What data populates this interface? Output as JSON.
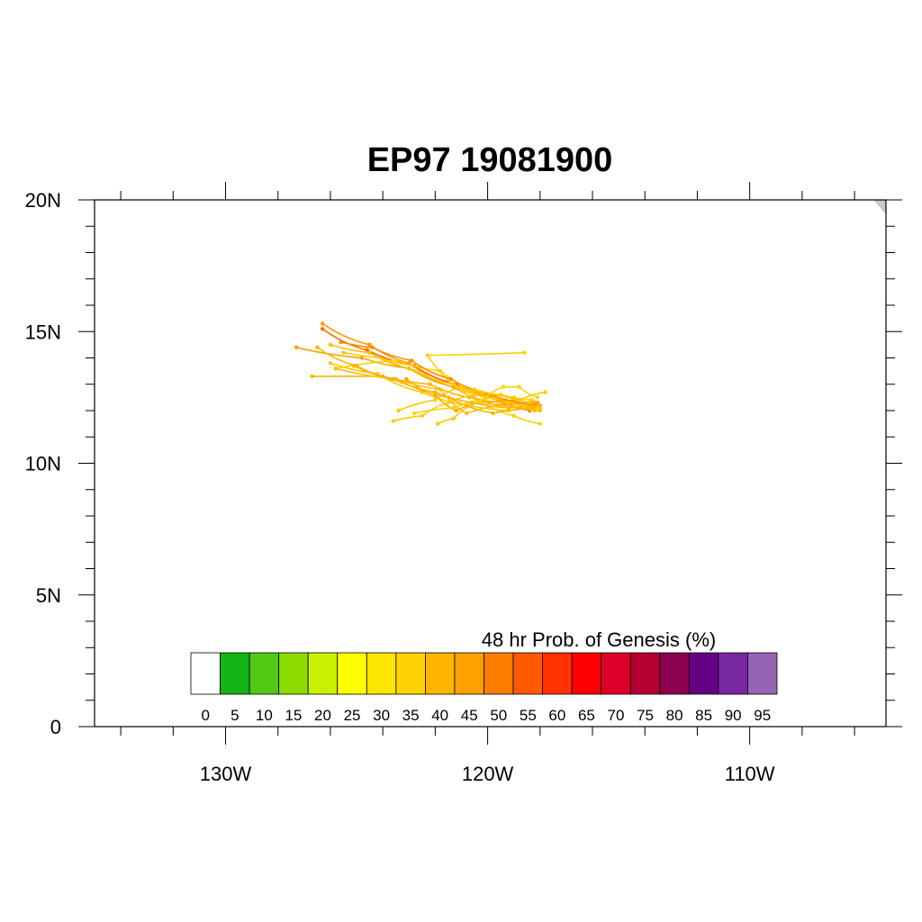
{
  "title": "EP97 19081900",
  "map": {
    "lon_range": [
      -135,
      -104.8
    ],
    "lat_range": [
      0,
      20
    ],
    "lat_labels": [
      {
        "lat": 20,
        "text": "20N"
      },
      {
        "lat": 15,
        "text": "15N"
      },
      {
        "lat": 10,
        "text": "10N"
      },
      {
        "lat": 5,
        "text": "5N"
      },
      {
        "lat": 0,
        "text": "0"
      }
    ],
    "lon_labels": [
      {
        "lon": -130,
        "text": "130W"
      },
      {
        "lon": -120,
        "text": "120W"
      },
      {
        "lon": -110,
        "text": "110W"
      }
    ]
  },
  "colorbar": {
    "title": "48 hr Prob. of Genesis (%)",
    "labels": [
      "0",
      "5",
      "10",
      "15",
      "20",
      "25",
      "30",
      "35",
      "40",
      "45",
      "50",
      "55",
      "60",
      "65",
      "70",
      "75",
      "80",
      "85",
      "90",
      "95"
    ],
    "colors": [
      "#ffffff",
      "#14b414",
      "#50c814",
      "#8cdc00",
      "#c8f000",
      "#ffff00",
      "#ffe600",
      "#ffd200",
      "#ffb400",
      "#ffa000",
      "#ff7d00",
      "#ff5a00",
      "#ff3200",
      "#ff0000",
      "#dc0028",
      "#b40032",
      "#8c0050",
      "#640082",
      "#7828a0",
      "#9664b4"
    ]
  },
  "tracks": [
    {
      "color": "#ffc800",
      "points": [
        [
          -118.2,
          12.1
        ],
        [
          -119.5,
          12.4
        ],
        [
          -121.0,
          12.8
        ],
        [
          -122.6,
          13.5
        ],
        [
          -124.0,
          14.0
        ],
        [
          -125.5,
          14.2
        ]
      ]
    },
    {
      "color": "#ff9600",
      "points": [
        [
          -118.3,
          12.2
        ],
        [
          -120.0,
          12.6
        ],
        [
          -121.5,
          13.1
        ],
        [
          -123.0,
          13.8
        ],
        [
          -124.5,
          14.5
        ],
        [
          -126.3,
          15.3
        ]
      ]
    },
    {
      "color": "#ff6e00",
      "points": [
        [
          -118.4,
          12.0
        ],
        [
          -119.8,
          12.5
        ],
        [
          -121.2,
          13.0
        ],
        [
          -122.8,
          13.7
        ],
        [
          -124.6,
          14.3
        ],
        [
          -126.3,
          15.1
        ]
      ]
    },
    {
      "color": "#ffa000",
      "points": [
        [
          -118.1,
          12.3
        ],
        [
          -119.6,
          12.2
        ],
        [
          -121.3,
          12.9
        ],
        [
          -123.0,
          13.6
        ],
        [
          -124.8,
          14.0
        ],
        [
          -127.3,
          14.4
        ]
      ]
    },
    {
      "color": "#ffb400",
      "points": [
        [
          -118.2,
          12.0
        ],
        [
          -119.4,
          12.3
        ],
        [
          -120.7,
          12.5
        ],
        [
          -122.2,
          13.0
        ],
        [
          -124.0,
          13.3
        ],
        [
          -126.7,
          13.3
        ]
      ]
    },
    {
      "color": "#ffc800",
      "points": [
        [
          -118.0,
          12.1
        ],
        [
          -119.2,
          12.0
        ],
        [
          -120.8,
          12.2
        ],
        [
          -122.5,
          12.7
        ],
        [
          -124.2,
          13.4
        ],
        [
          -126.0,
          13.8
        ]
      ]
    },
    {
      "color": "#ffd200",
      "points": [
        [
          -118.3,
          12.4
        ],
        [
          -119.5,
          12.6
        ],
        [
          -120.5,
          12.8
        ],
        [
          -121.8,
          13.5
        ],
        [
          -123.5,
          13.9
        ],
        [
          -125.8,
          13.6
        ]
      ]
    },
    {
      "color": "#ffbe00",
      "points": [
        [
          -118.1,
          12.2
        ],
        [
          -119.7,
          12.5
        ],
        [
          -121.3,
          13.0
        ],
        [
          -123.0,
          13.6
        ],
        [
          -124.5,
          14.2
        ],
        [
          -126.0,
          14.5
        ]
      ]
    },
    {
      "color": "#ffc800",
      "points": [
        [
          -118.0,
          12.0
        ],
        [
          -119.3,
          12.4
        ],
        [
          -120.5,
          12.6
        ],
        [
          -121.5,
          12.3
        ],
        [
          -122.5,
          11.8
        ],
        [
          -123.6,
          11.6
        ]
      ]
    },
    {
      "color": "#ffaa00",
      "points": [
        [
          -118.2,
          12.3
        ],
        [
          -119.0,
          12.4
        ],
        [
          -120.3,
          12.3
        ],
        [
          -121.2,
          12.0
        ],
        [
          -122.0,
          12.6
        ],
        [
          -123.1,
          13.2
        ]
      ]
    },
    {
      "color": "#ffd200",
      "points": [
        [
          -118.0,
          11.5
        ],
        [
          -119.0,
          11.8
        ],
        [
          -120.0,
          12.2
        ],
        [
          -121.0,
          12.8
        ],
        [
          -122.3,
          14.1
        ],
        [
          -118.6,
          14.2
        ]
      ]
    },
    {
      "color": "#ffc800",
      "points": [
        [
          -117.8,
          12.7
        ],
        [
          -118.8,
          12.4
        ],
        [
          -119.5,
          12.6
        ],
        [
          -120.6,
          12.2
        ],
        [
          -121.3,
          11.7
        ],
        [
          -121.9,
          11.5
        ]
      ]
    },
    {
      "color": "#ffbe00",
      "points": [
        [
          -118.0,
          12.0
        ],
        [
          -119.5,
          12.2
        ],
        [
          -120.8,
          11.9
        ],
        [
          -121.8,
          12.8
        ],
        [
          -123.5,
          13.2
        ],
        [
          -125.8,
          13.6
        ]
      ]
    },
    {
      "color": "#ffb400",
      "points": [
        [
          -118.3,
          12.1
        ],
        [
          -119.8,
          11.9
        ],
        [
          -121.5,
          12.5
        ],
        [
          -123.3,
          13.1
        ],
        [
          -125.0,
          13.7
        ],
        [
          -126.5,
          14.4
        ]
      ]
    },
    {
      "color": "#ff8c00",
      "points": [
        [
          -118.2,
          12.2
        ],
        [
          -119.9,
          12.6
        ],
        [
          -121.4,
          13.2
        ],
        [
          -122.9,
          13.9
        ],
        [
          -124.4,
          14.4
        ],
        [
          -125.6,
          14.6
        ]
      ]
    },
    {
      "color": "#ffc800",
      "points": [
        [
          -118.4,
          12.3
        ],
        [
          -119.0,
          12.5
        ],
        [
          -120.2,
          12.7
        ],
        [
          -121.0,
          12.9
        ],
        [
          -122.0,
          12.4
        ],
        [
          -123.4,
          12.0
        ]
      ]
    },
    {
      "color": "#ffd200",
      "points": [
        [
          -118.1,
          12.5
        ],
        [
          -118.8,
          12.9
        ],
        [
          -119.4,
          12.9
        ],
        [
          -120.2,
          12.4
        ],
        [
          -121.3,
          12.1
        ],
        [
          -122.8,
          11.9
        ]
      ]
    },
    {
      "color": "#ffb400",
      "points": [
        [
          -118.0,
          12.2
        ],
        [
          -119.2,
          12.1
        ],
        [
          -120.6,
          12.3
        ],
        [
          -122.0,
          12.7
        ],
        [
          -123.6,
          13.2
        ],
        [
          -125.1,
          13.7
        ]
      ]
    }
  ]
}
